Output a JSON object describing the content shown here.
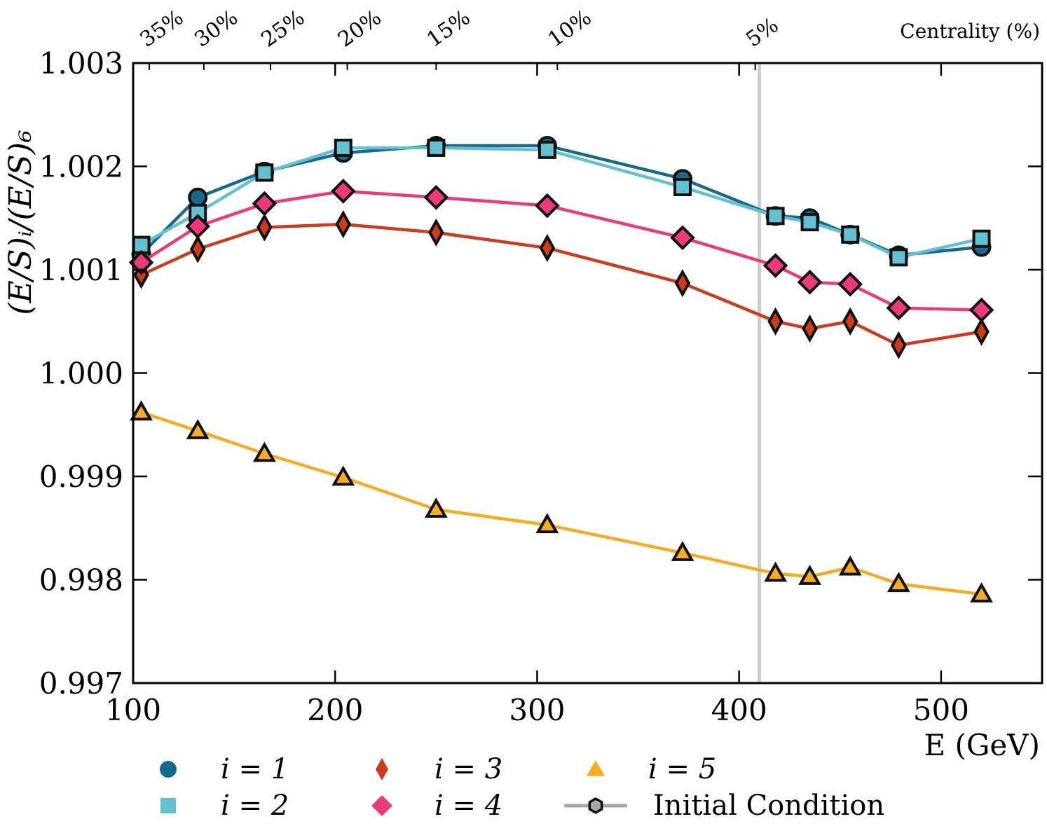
{
  "chart_data": {
    "type": "line",
    "xlabel": "E (GeV)",
    "ylabel": "(E/S)_i/(E/S)_6",
    "xlim": [
      100,
      550
    ],
    "ylim": [
      0.997,
      1.003
    ],
    "xticks": [
      100,
      200,
      300,
      400,
      500
    ],
    "yticks": [
      0.997,
      0.998,
      0.999,
      1.0,
      1.001,
      1.002,
      1.003
    ],
    "ytick_labels": [
      "0.997",
      "0.998",
      "0.999",
      "1.000",
      "1.001",
      "1.002",
      "1.003"
    ],
    "top_axis": {
      "label": "Centrality (%)",
      "ticks": [
        {
          "label": "35%",
          "x": 108
        },
        {
          "label": "30%",
          "x": 135
        },
        {
          "label": "25%",
          "x": 168
        },
        {
          "label": "20%",
          "x": 206
        },
        {
          "label": "15%",
          "x": 250
        },
        {
          "label": "10%",
          "x": 310
        },
        {
          "label": "5%",
          "x": 408
        }
      ]
    },
    "vertical_line": {
      "x": 410,
      "color": "#cccccc"
    },
    "x": [
      104,
      132,
      165,
      204,
      250,
      305,
      372,
      418,
      435,
      455,
      479,
      520
    ],
    "series": [
      {
        "name": "i = 1",
        "marker": "circle",
        "color": "#176a8c",
        "values": [
          1.00115,
          1.0017,
          1.00195,
          1.00213,
          1.0022,
          1.0022,
          1.00188,
          1.00152,
          1.0015,
          1.00134,
          1.00114,
          1.00122
        ]
      },
      {
        "name": "i = 2",
        "marker": "square",
        "color": "#62c0d0",
        "values": [
          1.00124,
          1.00155,
          1.00194,
          1.00218,
          1.00218,
          1.00216,
          1.0018,
          1.00152,
          1.00146,
          1.00134,
          1.00112,
          1.0013
        ]
      },
      {
        "name": "i = 3",
        "marker": "diamond-thin",
        "color": "#cc3b1b",
        "values": [
          1.00095,
          1.0012,
          1.00141,
          1.00144,
          1.00136,
          1.00121,
          1.00087,
          1.0005,
          1.00043,
          1.0005,
          1.00027,
          1.0004
        ]
      },
      {
        "name": "i = 4",
        "marker": "diamond",
        "color": "#ea3a7a",
        "values": [
          1.00107,
          1.00142,
          1.00164,
          1.00176,
          1.0017,
          1.00162,
          1.00131,
          1.00104,
          1.00088,
          1.00086,
          1.00063,
          1.00061
        ]
      },
      {
        "name": "i = 5",
        "marker": "triangle",
        "color": "#f5ab22",
        "values": [
          0.99962,
          0.99944,
          0.99922,
          0.99899,
          0.99868,
          0.99853,
          0.99826,
          0.99806,
          0.99803,
          0.99812,
          0.99796,
          0.99786
        ]
      }
    ],
    "legend": {
      "placement": "bottom",
      "entries": [
        {
          "label": "i = 1",
          "marker": "circle",
          "color": "#176a8c"
        },
        {
          "label": "i = 3",
          "marker": "diamond-thin",
          "color": "#cc3b1b"
        },
        {
          "label": "i = 5",
          "marker": "triangle",
          "color": "#f5ab22"
        },
        {
          "label": "i = 2",
          "marker": "square",
          "color": "#62c0d0"
        },
        {
          "label": "i = 4",
          "marker": "diamond",
          "color": "#ea3a7a"
        },
        {
          "label": "Initial Condition",
          "marker": "hexagon-line",
          "color": "#a8a8a8"
        }
      ]
    }
  }
}
